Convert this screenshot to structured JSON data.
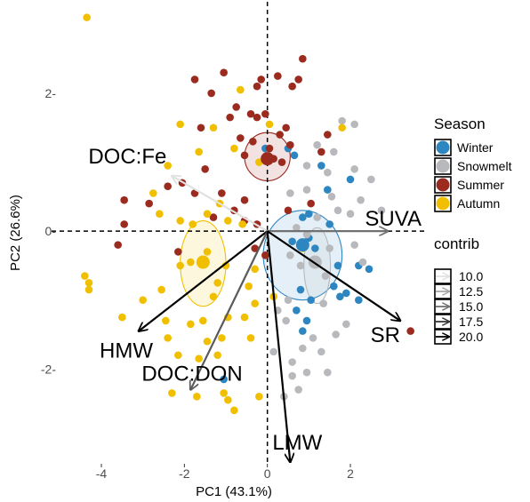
{
  "chart_data": {
    "type": "scatter",
    "subtype": "pca-biplot",
    "xlabel": "PC1 (43.1%)",
    "ylabel": "PC2 (26.6%)",
    "xlim": [
      -5.2,
      3.8
    ],
    "ylim": [
      -3.35,
      3.25
    ],
    "x_ticks": [
      -4,
      -2,
      0,
      2
    ],
    "y_ticks": [
      -2,
      0,
      2
    ],
    "x_tick_labels": [
      "-4",
      "-2",
      "0",
      "2"
    ],
    "y_tick_labels": [
      "-2-",
      "0-",
      "2-"
    ],
    "reference_lines": {
      "x": 0,
      "y": 0,
      "style": "dashed"
    },
    "grid": false,
    "legend": {
      "placement": "right",
      "season_title": "Season",
      "contrib_title": "contrib"
    },
    "series": [
      {
        "name": "Winter",
        "color": "#2e86c1",
        "points": [
          [
            -0.05,
            1.2
          ],
          [
            0.5,
            1.2
          ],
          [
            0.65,
            1.1
          ],
          [
            1.3,
            0.95
          ],
          [
            2.0,
            0.75
          ],
          [
            1.45,
            0.6
          ],
          [
            0.85,
            0.2
          ],
          [
            1.0,
            0.25
          ],
          [
            1.5,
            0.1
          ],
          [
            0.6,
            -0.15
          ],
          [
            1.0,
            -0.1
          ],
          [
            1.15,
            -0.25
          ],
          [
            1.7,
            -0.5
          ],
          [
            2.2,
            -0.5
          ],
          [
            2.45,
            -0.55
          ],
          [
            1.9,
            -0.9
          ],
          [
            1.6,
            -0.8
          ],
          [
            1.75,
            -0.95
          ],
          [
            2.2,
            -1.0
          ],
          [
            0.8,
            -0.85
          ],
          [
            0.7,
            -1.15
          ],
          [
            1.05,
            -1.0
          ],
          [
            0.95,
            -1.3
          ],
          [
            0.85,
            -1.45
          ],
          [
            -1.05,
            -2.15
          ]
        ]
      },
      {
        "name": "Snowmelt",
        "color": "#b8b9bc",
        "points": [
          [
            1.6,
            1.15
          ],
          [
            1.8,
            1.6
          ],
          [
            2.1,
            1.55
          ],
          [
            1.2,
            1.25
          ],
          [
            0.95,
            0.95
          ],
          [
            1.45,
            0.85
          ],
          [
            2.1,
            0.9
          ],
          [
            2.5,
            0.75
          ],
          [
            2.25,
            0.45
          ],
          [
            2.75,
            0.3
          ],
          [
            2.0,
            0.25
          ],
          [
            1.2,
            0.2
          ],
          [
            0.55,
            0.55
          ],
          [
            1.55,
            0.5
          ],
          [
            0.95,
            0.6
          ],
          [
            1.7,
            0.3
          ],
          [
            0.7,
            0.05
          ],
          [
            0.95,
            -0.05
          ],
          [
            2.1,
            -0.2
          ],
          [
            1.5,
            -0.25
          ],
          [
            0.55,
            -0.35
          ],
          [
            0.8,
            -0.5
          ],
          [
            1.4,
            -0.65
          ],
          [
            2.3,
            -0.45
          ],
          [
            0.5,
            -1.0
          ],
          [
            0.45,
            -1.3
          ],
          [
            0.85,
            -1.7
          ],
          [
            1.3,
            -1.75
          ],
          [
            0.6,
            -1.9
          ],
          [
            0.95,
            -2.05
          ],
          [
            0.75,
            -2.3
          ],
          [
            1.45,
            -2.05
          ],
          [
            1.65,
            -1.5
          ],
          [
            1.35,
            -1.05
          ],
          [
            1.9,
            -1.35
          ],
          [
            1.1,
            -1.55
          ],
          [
            0.25,
            -1.15
          ],
          [
            0.4,
            -2.4
          ],
          [
            0.15,
            -1.75
          ],
          [
            0.6,
            -2.1
          ]
        ]
      },
      {
        "name": "Summer",
        "color": "#9b2a1f",
        "points": [
          [
            -1.75,
            2.2
          ],
          [
            -1.05,
            2.3
          ],
          [
            -0.15,
            2.2
          ],
          [
            -0.25,
            2.1
          ],
          [
            0.25,
            2.25
          ],
          [
            0.75,
            2.2
          ],
          [
            0.6,
            2.1
          ],
          [
            0.85,
            2.5
          ],
          [
            -1.6,
            1.5
          ],
          [
            -0.75,
            1.8
          ],
          [
            -0.4,
            1.7
          ],
          [
            -0.25,
            1.65
          ],
          [
            -0.05,
            1.7
          ],
          [
            0.3,
            1.4
          ],
          [
            0.45,
            1.5
          ],
          [
            0.55,
            1.25
          ],
          [
            1.45,
            1.4
          ],
          [
            -0.55,
            1.1
          ],
          [
            -0.35,
            1.3
          ],
          [
            0.05,
            1.2
          ],
          [
            0.15,
            1.05
          ],
          [
            1.3,
            1.15
          ],
          [
            1.05,
            0.4
          ],
          [
            -2.4,
            0.65
          ],
          [
            -2.05,
            0.7
          ],
          [
            -1.75,
            0.55
          ],
          [
            -1.1,
            0.55
          ],
          [
            -0.8,
            0.3
          ],
          [
            -0.55,
            0.45
          ],
          [
            -2.85,
            0.4
          ],
          [
            -3.45,
            0.45
          ],
          [
            -3.45,
            0.1
          ],
          [
            -3.6,
            -0.2
          ],
          [
            -2.15,
            -0.3
          ],
          [
            0.5,
            0.3
          ],
          [
            3.45,
            -1.45
          ],
          [
            -0.05,
            -0.35
          ],
          [
            -0.3,
            -0.25
          ],
          [
            -0.25,
            0.1
          ],
          [
            -0.55,
            0.15
          ],
          [
            -1.3,
            0.2
          ],
          [
            -1.5,
            0.9
          ],
          [
            -0.65,
            1.35
          ],
          [
            -0.9,
            1.65
          ],
          [
            -1.35,
            2.0
          ],
          [
            0.35,
            1.0
          ]
        ]
      },
      {
        "name": "Autumn",
        "color": "#f0c000",
        "points": [
          [
            -4.35,
            3.1
          ],
          [
            -0.65,
            2.05
          ],
          [
            -2.1,
            1.55
          ],
          [
            -1.3,
            1.5
          ],
          [
            0.05,
            1.55
          ],
          [
            1.8,
            1.5
          ],
          [
            -0.8,
            1.2
          ],
          [
            -2.4,
            0.95
          ],
          [
            -2.75,
            0.55
          ],
          [
            -2.6,
            0.25
          ],
          [
            -2.1,
            0.15
          ],
          [
            -1.8,
            0.1
          ],
          [
            -1.45,
            0.25
          ],
          [
            -1.15,
            0.4
          ],
          [
            -0.95,
            0.15
          ],
          [
            -0.6,
            0.1
          ],
          [
            -1.45,
            -0.3
          ],
          [
            -1.85,
            -0.45
          ],
          [
            -2.1,
            -0.5
          ],
          [
            -2.55,
            -0.85
          ],
          [
            -1.2,
            -0.75
          ],
          [
            -1.0,
            -0.5
          ],
          [
            -1.3,
            -0.95
          ],
          [
            -0.3,
            -0.55
          ],
          [
            -0.45,
            -0.8
          ],
          [
            -0.55,
            -1.25
          ],
          [
            -0.95,
            -1.25
          ],
          [
            -1.1,
            -1.55
          ],
          [
            -1.45,
            -1.6
          ],
          [
            -1.55,
            -1.3
          ],
          [
            -1.2,
            -1.8
          ],
          [
            -1.65,
            -1.85
          ],
          [
            -2.15,
            -1.8
          ],
          [
            -2.4,
            -1.55
          ],
          [
            -2.45,
            -1.3
          ],
          [
            -3.5,
            -1.25
          ],
          [
            -3.0,
            -1.0
          ],
          [
            -4.4,
            -0.65
          ],
          [
            -4.3,
            -0.75
          ],
          [
            -4.3,
            -0.85
          ],
          [
            -1.05,
            -2.35
          ],
          [
            -0.95,
            -2.45
          ],
          [
            -1.7,
            -2.4
          ],
          [
            -2.3,
            -2.35
          ],
          [
            -0.8,
            -2.6
          ],
          [
            -0.2,
            -2.4
          ],
          [
            -1.85,
            -1.35
          ],
          [
            -0.4,
            -1.55
          ],
          [
            0.15,
            -0.95
          ],
          [
            -0.3,
            -1.05
          ],
          [
            0.85,
            -0.25
          ],
          [
            -1.65,
            1.15
          ],
          [
            -0.2,
            1.0
          ]
        ]
      }
    ],
    "centroids": [
      {
        "name": "Winter",
        "x": 0.85,
        "y": -0.2
      },
      {
        "name": "Snowmelt",
        "x": 1.15,
        "y": -0.45
      },
      {
        "name": "Summer",
        "x": 0.0,
        "y": 1.05
      },
      {
        "name": "Autumn",
        "x": -1.55,
        "y": -0.45
      }
    ],
    "ellipses": [
      {
        "name": "Winter",
        "cx": 0.85,
        "cy": -0.35,
        "rx": 0.95,
        "ry": 0.65,
        "rotation": 0
      },
      {
        "name": "Snowmelt",
        "cx": 1.2,
        "cy": -0.5,
        "rx": 0.32,
        "ry": 0.55,
        "rotation": 0
      },
      {
        "name": "Summer",
        "cx": 0.0,
        "cy": 1.08,
        "rx": 0.55,
        "ry": 0.35,
        "rotation": 0
      },
      {
        "name": "Autumn",
        "cx": -1.55,
        "cy": -0.47,
        "rx": 0.55,
        "ry": 0.62,
        "rotation": 0
      }
    ],
    "variables": [
      {
        "name": "DOC:Fe",
        "x": -2.3,
        "y": 0.8,
        "contrib": 10.0
      },
      {
        "name": "SUVA",
        "x": 2.9,
        "y": 0.0,
        "contrib": 15.0
      },
      {
        "name": "SR",
        "x": 3.2,
        "y": -1.3,
        "contrib": 20.0
      },
      {
        "name": "HMW",
        "x": -3.1,
        "y": -1.45,
        "contrib": 20.0
      },
      {
        "name": "DOC:DON",
        "x": -1.85,
        "y": -2.3,
        "contrib": 16.0
      },
      {
        "name": "LMW",
        "x": 0.55,
        "y": -3.35,
        "contrib": 20.0
      }
    ],
    "contrib_legend": [
      "10.0",
      "12.5",
      "15.0",
      "17.5",
      "20.0"
    ]
  }
}
